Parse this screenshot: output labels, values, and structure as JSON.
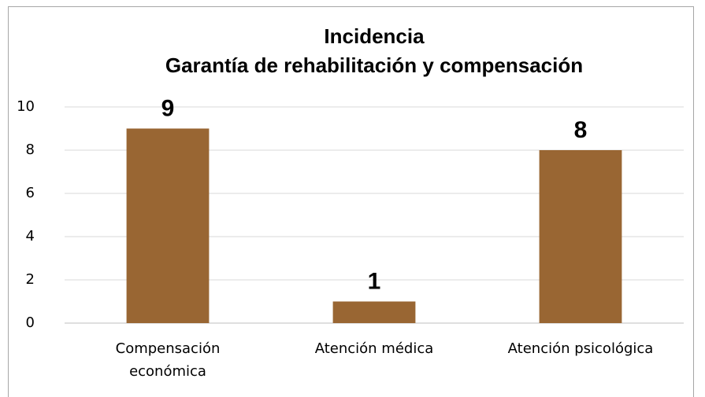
{
  "chart_data": {
    "type": "bar",
    "title": [
      "Incidencia",
      "Garantía de rehabilitación y compensación"
    ],
    "categories": [
      "Compensación económica",
      "Atención médica",
      "Atención psicológica"
    ],
    "values": [
      9,
      1,
      8
    ],
    "color": "#996633",
    "ylim": [
      0,
      10
    ],
    "yticks": [
      0,
      2,
      4,
      6,
      8,
      10
    ],
    "grid": true
  }
}
